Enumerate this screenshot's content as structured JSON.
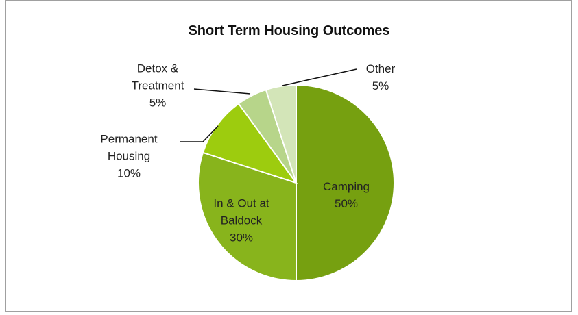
{
  "chart_data": {
    "type": "pie",
    "title": "Short Term Housing Outcomes",
    "categories": [
      "Camping",
      "In & Out at Baldock",
      "Permanent Housing",
      "Detox & Treatment",
      "Other"
    ],
    "values": [
      50,
      30,
      10,
      5,
      5
    ],
    "value_labels": [
      "50%",
      "30%",
      "10%",
      "5%",
      "5%"
    ],
    "colors": [
      "#76a010",
      "#88b41c",
      "#9dcc0e",
      "#b7d58a",
      "#d3e5b8"
    ]
  }
}
